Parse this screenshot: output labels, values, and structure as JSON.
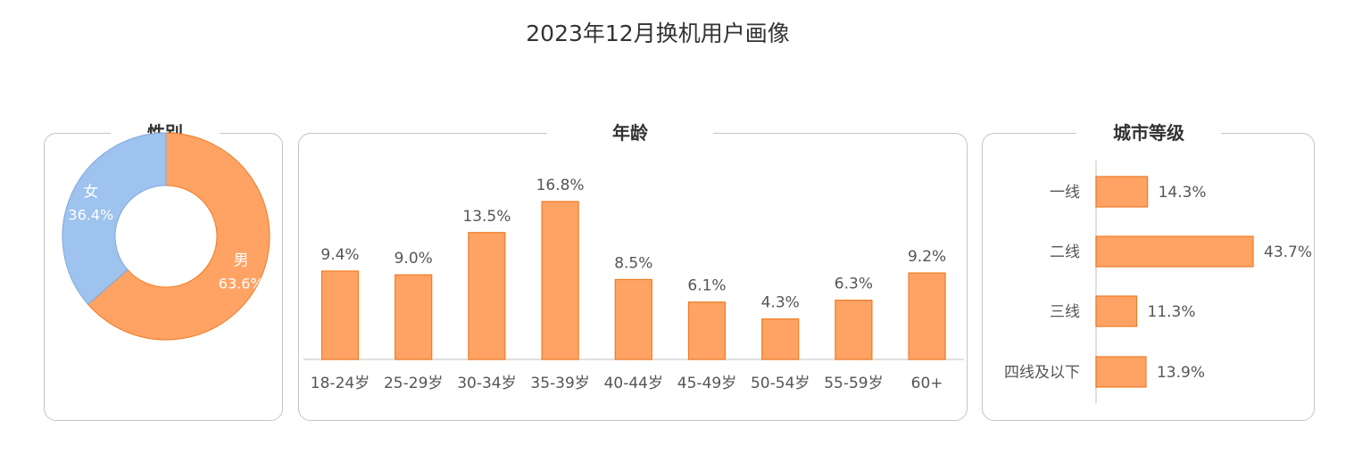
{
  "title": "2023年12月换机用户画像",
  "chart_data": [
    {
      "type": "pie",
      "title": "性别",
      "donut": true,
      "slices": [
        {
          "label": "男",
          "value": 63.6,
          "value_label": "63.6%",
          "color": "#FFA365"
        },
        {
          "label": "女",
          "value": 36.4,
          "value_label": "36.4%",
          "color": "#9DC3EE"
        }
      ]
    },
    {
      "type": "bar",
      "title": "年龄",
      "categories": [
        "18-24岁",
        "25-29岁",
        "30-34岁",
        "35-39岁",
        "40-44岁",
        "45-49岁",
        "50-54岁",
        "55-59岁",
        "60+"
      ],
      "values": [
        9.4,
        9.0,
        13.5,
        16.8,
        8.5,
        6.1,
        4.3,
        6.3,
        9.2
      ],
      "value_labels": [
        "9.4%",
        "9.0%",
        "13.5%",
        "16.8%",
        "8.5%",
        "6.1%",
        "4.3%",
        "6.3%",
        "9.2%"
      ],
      "ylim": [
        0,
        18
      ],
      "grid": false,
      "color": "#FFA365",
      "edge_color": "#F07A22"
    },
    {
      "type": "bar",
      "orientation": "horizontal",
      "title": "城市等级",
      "categories": [
        "一线",
        "二线",
        "三线",
        "四线及以下"
      ],
      "values": [
        14.3,
        43.7,
        11.3,
        13.9
      ],
      "value_labels": [
        "14.3%",
        "43.7%",
        "11.3%",
        "13.9%"
      ],
      "xlim": [
        0,
        45
      ],
      "grid": false,
      "color": "#FFA365",
      "edge_color": "#F07A22"
    }
  ]
}
